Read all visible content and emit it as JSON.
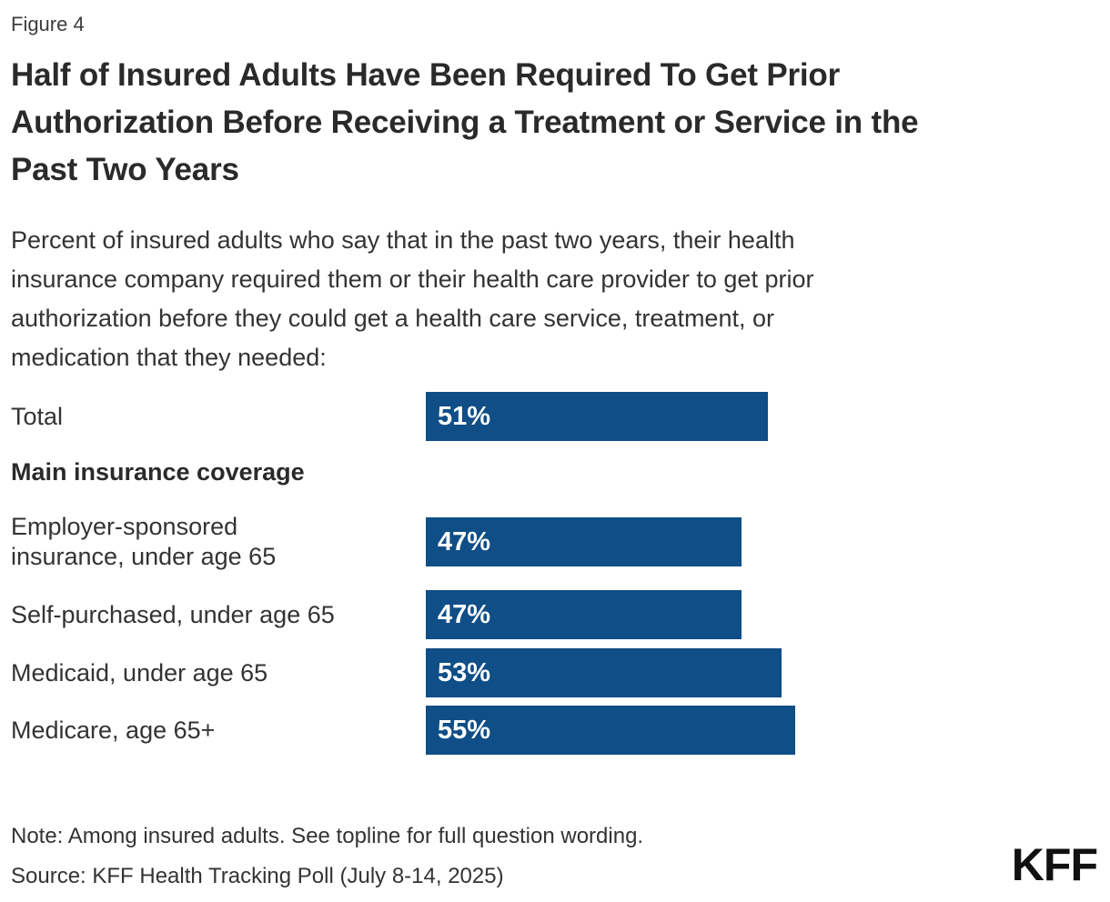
{
  "display": {
    "figure_label": "Figure 4",
    "title": "Half of Insured Adults Have Been Required To Get Prior\nAuthorization Before Receiving a Treatment or Service in the\nPast Two Years",
    "subtitle": "Percent of insured adults who say that in the past two years, their health\ninsurance company required them or their health care provider to get prior\nauthorization before they could get a health care service, treatment, or\nmedication that they needed:",
    "group_header": "Main insurance coverage",
    "rows": [
      {
        "label": "Total",
        "value": 51,
        "value_label": "51%"
      },
      {
        "label": "Employer-sponsored\ninsurance, under age 65",
        "value": 47,
        "value_label": "47%"
      },
      {
        "label": "Self-purchased, under age 65",
        "value": 47,
        "value_label": "47%"
      },
      {
        "label": "Medicaid, under age 65",
        "value": 53,
        "value_label": "53%"
      },
      {
        "label": "Medicare, age 65+",
        "value": 55,
        "value_label": "55%"
      }
    ],
    "note": "Note: Among insured adults. See topline for full question wording.",
    "source": "Source: KFF Health Tracking Poll (July 8-14, 2025)",
    "brand": "KFF"
  },
  "colors": {
    "bar": "#0F4E87",
    "bar_label_text": "#FFFFFF",
    "title_text": "#2A2A2A",
    "body_text": "#333333",
    "logo_text": "#111111"
  },
  "chart_data": {
    "type": "bar",
    "orientation": "horizontal",
    "title": "Half of Insured Adults Have Been Required To Get Prior Authorization Before Receiving a Treatment or Service in the Past Two Years",
    "subtitle": "Percent of insured adults who say that in the past two years, their health insurance company required them or their health care provider to get prior authorization before they could get a health care service, treatment, or medication that they needed:",
    "figure_label": "Figure 4",
    "group_header_before_index_1": "Main insurance coverage",
    "categories": [
      "Total",
      "Employer-sponsored insurance, under age 65",
      "Self-purchased, under age 65",
      "Medicaid, under age 65",
      "Medicare, age 65+"
    ],
    "values": [
      51,
      47,
      47,
      53,
      55
    ],
    "value_labels": [
      "51%",
      "47%",
      "47%",
      "53%",
      "55%"
    ],
    "xlim": [
      0,
      100
    ],
    "bar_color": "#0F4E87",
    "data_labels_position": "inside-start",
    "axes_hidden": true,
    "grid": false,
    "legend": "none",
    "note": "Note: Among insured adults. See topline for full question wording.",
    "source": "Source: KFF Health Tracking Poll (July 8-14, 2025)"
  }
}
